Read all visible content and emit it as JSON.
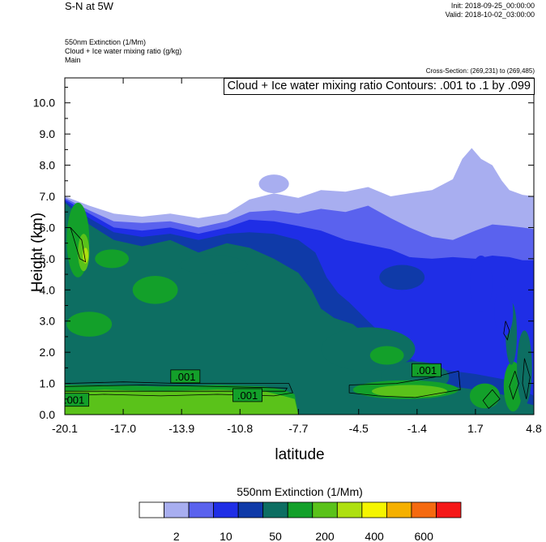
{
  "header": {
    "title": "S-N at 5W",
    "init": "Init: 2018-09-25_00:00:00",
    "valid": "Valid: 2018-10-02_03:00:00",
    "field1": "550nm Extinction   (1/Mm)",
    "field2": "Cloud + Ice water mixing ratio   (g/kg)",
    "field3": "Main",
    "cross_section": "Cross-Section: (269,231) to (269,485)",
    "contour_label": "Cloud + Ice water mixing ratio Contours: .001 to .1 by .099"
  },
  "chart_data": {
    "type": "heatmap",
    "title": "S-N at 5W",
    "xlabel": "latitude",
    "ylabel": "Height (km)",
    "x_ticks": [
      "-20.1",
      "-17.0",
      "-13.9",
      "-10.8",
      "-7.7",
      "-4.5",
      "-1.4",
      "1.7",
      "4.8"
    ],
    "x_tick_values": [
      -20.1,
      -17.0,
      -13.9,
      -10.8,
      -7.7,
      -4.5,
      -1.4,
      1.7,
      4.8
    ],
    "y_ticks": [
      "0.0",
      "1.0",
      "2.0",
      "3.0",
      "4.0",
      "5.0",
      "6.0",
      "7.0",
      "8.0",
      "9.0",
      "10.0"
    ],
    "y_tick_values": [
      0,
      1,
      2,
      3,
      4,
      5,
      6,
      7,
      8,
      9,
      10
    ],
    "xlim": [
      -20.1,
      4.8
    ],
    "ylim": [
      0,
      10.8
    ],
    "contour_labels": [
      {
        "text": ".001",
        "lat": -13.7,
        "height": 1.2
      },
      {
        "text": ".001",
        "lat": -10.4,
        "height": 0.6
      },
      {
        "text": ".001",
        "lat": -19.6,
        "height": 0.45
      },
      {
        "text": ".001",
        "lat": -0.9,
        "height": 1.4
      }
    ],
    "colorbar": {
      "title": "550nm Extinction  (1/Mm)",
      "labels": [
        "2",
        "10",
        "50",
        "200",
        "400",
        "600"
      ],
      "colors": [
        "#ffffff",
        "#a8aef0",
        "#5a62ee",
        "#1f2ee6",
        "#0f3aa8",
        "#0d6e62",
        "#13a02a",
        "#5ac21a",
        "#aee010",
        "#f5f500",
        "#f5b000",
        "#f56a10",
        "#f51818"
      ]
    },
    "bands": [
      {
        "level": 1,
        "color": "#a8aef0",
        "top": [
          [
            -20.1,
            7.0
          ],
          [
            -18.8,
            6.7
          ],
          [
            -17.5,
            6.45
          ],
          [
            -16.0,
            6.35
          ],
          [
            -14.5,
            6.45
          ],
          [
            -13.0,
            6.3
          ],
          [
            -11.5,
            6.45
          ],
          [
            -10.3,
            6.9
          ],
          [
            -9.0,
            7.1
          ],
          [
            -7.7,
            6.95
          ],
          [
            -6.5,
            7.2
          ],
          [
            -5.2,
            7.15
          ],
          [
            -4.0,
            7.3
          ],
          [
            -2.8,
            7.0
          ],
          [
            -1.8,
            7.1
          ],
          [
            -0.6,
            7.2
          ],
          [
            0.5,
            7.55
          ],
          [
            1.0,
            8.2
          ],
          [
            1.5,
            8.55
          ],
          [
            2.0,
            8.2
          ],
          [
            2.6,
            8.0
          ],
          [
            3.1,
            7.5
          ],
          [
            3.5,
            7.2
          ],
          [
            4.2,
            7.05
          ],
          [
            4.8,
            7.0
          ]
        ]
      },
      {
        "level": 2,
        "color": "#5a62ee",
        "top": [
          [
            -20.1,
            6.95
          ],
          [
            -18.8,
            6.55
          ],
          [
            -17.5,
            6.2
          ],
          [
            -16.0,
            6.15
          ],
          [
            -14.5,
            6.2
          ],
          [
            -13.0,
            6.0
          ],
          [
            -11.5,
            6.2
          ],
          [
            -10.3,
            6.5
          ],
          [
            -9.0,
            6.55
          ],
          [
            -7.7,
            6.45
          ],
          [
            -6.5,
            6.6
          ],
          [
            -5.2,
            6.5
          ],
          [
            -4.0,
            6.7
          ],
          [
            -2.8,
            6.3
          ],
          [
            -1.8,
            6.0
          ],
          [
            -0.6,
            5.7
          ],
          [
            0.5,
            5.6
          ],
          [
            1.7,
            5.9
          ],
          [
            2.6,
            6.1
          ],
          [
            3.5,
            6.05
          ],
          [
            4.2,
            6.0
          ],
          [
            4.8,
            5.95
          ]
        ]
      },
      {
        "level": 3,
        "color": "#1f2ee6",
        "top": [
          [
            -20.1,
            6.9
          ],
          [
            -18.8,
            6.45
          ],
          [
            -17.5,
            6.0
          ],
          [
            -16.0,
            5.9
          ],
          [
            -14.5,
            6.0
          ],
          [
            -13.0,
            5.8
          ],
          [
            -11.5,
            6.0
          ],
          [
            -10.3,
            6.25
          ],
          [
            -9.0,
            6.2
          ],
          [
            -7.7,
            6.05
          ],
          [
            -6.5,
            5.9
          ],
          [
            -5.2,
            5.6
          ],
          [
            -4.0,
            5.45
          ],
          [
            -2.8,
            5.3
          ],
          [
            -1.8,
            5.05
          ],
          [
            -0.6,
            5.0
          ],
          [
            0.5,
            5.05
          ],
          [
            1.7,
            5.0
          ],
          [
            2.6,
            5.1
          ],
          [
            3.5,
            5.05
          ],
          [
            4.2,
            4.95
          ],
          [
            4.8,
            4.95
          ]
        ]
      },
      {
        "level": 4,
        "color": "#0f3aa8",
        "top": [
          [
            -20.1,
            6.85
          ],
          [
            -18.8,
            6.3
          ],
          [
            -17.5,
            5.85
          ],
          [
            -16.0,
            5.7
          ],
          [
            -14.5,
            5.8
          ],
          [
            -13.0,
            5.6
          ],
          [
            -11.5,
            5.8
          ],
          [
            -10.3,
            5.85
          ],
          [
            -9.0,
            5.8
          ],
          [
            -7.7,
            5.6
          ],
          [
            -6.8,
            5.2
          ],
          [
            -6.2,
            4.4
          ],
          [
            -5.6,
            3.9
          ],
          [
            -5.0,
            3.6
          ],
          [
            -4.0,
            3.0
          ],
          [
            -2.8,
            2.3
          ],
          [
            -1.8,
            1.8
          ],
          [
            -0.6,
            1.5
          ],
          [
            0.5,
            1.4
          ],
          [
            1.7,
            1.3
          ],
          [
            2.6,
            1.2
          ],
          [
            3.5,
            1.1
          ],
          [
            4.2,
            0.8
          ],
          [
            4.8,
            0.6
          ]
        ]
      },
      {
        "level": 5,
        "color": "#0d6e62",
        "top": [
          [
            -20.1,
            6.8
          ],
          [
            -18.8,
            6.1
          ],
          [
            -17.5,
            5.6
          ],
          [
            -16.0,
            5.4
          ],
          [
            -14.5,
            5.6
          ],
          [
            -13.0,
            5.2
          ],
          [
            -11.5,
            5.5
          ],
          [
            -10.3,
            5.35
          ],
          [
            -9.0,
            5.0
          ],
          [
            -7.7,
            4.55
          ],
          [
            -7.0,
            4.0
          ],
          [
            -6.5,
            3.4
          ],
          [
            -5.8,
            3.1
          ],
          [
            -4.8,
            2.9
          ],
          [
            -4.0,
            2.5
          ],
          [
            -2.8,
            2.0
          ],
          [
            -1.8,
            1.6
          ],
          [
            -0.6,
            1.2
          ],
          [
            0.5,
            0.9
          ],
          [
            1.7,
            0.8
          ],
          [
            2.6,
            0.7
          ],
          [
            3.5,
            0.6
          ],
          [
            4.2,
            0.4
          ],
          [
            4.8,
            0.3
          ]
        ]
      },
      {
        "level": 6,
        "color": "#13a02a",
        "top": [
          [
            -20.1,
            0.95
          ],
          [
            -18.0,
            0.95
          ],
          [
            -15.0,
            0.9
          ],
          [
            -12.0,
            0.95
          ],
          [
            -9.5,
            0.9
          ],
          [
            -8.5,
            0.8
          ],
          [
            -7.9,
            0.65
          ],
          [
            -7.7,
            0.0
          ],
          [
            4.8,
            0.0
          ]
        ]
      },
      {
        "level": 7,
        "color": "#5ac21a",
        "top": [
          [
            -20.1,
            0.75
          ],
          [
            -18.0,
            0.8
          ],
          [
            -15.0,
            0.75
          ],
          [
            -12.0,
            0.8
          ],
          [
            -9.5,
            0.75
          ],
          [
            -8.5,
            0.6
          ],
          [
            -7.9,
            0.5
          ],
          [
            -7.7,
            0.0
          ],
          [
            4.8,
            0.0
          ]
        ]
      }
    ],
    "blobs": [
      {
        "color": "#13a02a",
        "center": [
          -19.4,
          5.6
        ],
        "radii": [
          0.6,
          1.2
        ]
      },
      {
        "color": "#5ac21a",
        "center": [
          -19.1,
          5.2
        ],
        "radii": [
          0.3,
          0.6
        ]
      },
      {
        "color": "#aee010",
        "center": [
          -19.0,
          5.1
        ],
        "radii": [
          0.15,
          0.25
        ]
      },
      {
        "color": "#13a02a",
        "center": [
          -15.3,
          4.0
        ],
        "radii": [
          1.2,
          0.45
        ]
      },
      {
        "color": "#13a02a",
        "center": [
          -18.8,
          2.9
        ],
        "radii": [
          1.2,
          0.4
        ]
      },
      {
        "color": "#13a02a",
        "center": [
          -17.6,
          5.0
        ],
        "radii": [
          0.9,
          0.3
        ]
      },
      {
        "color": "#0d6e62",
        "center": [
          -4.0,
          2.1
        ],
        "radii": [
          2.5,
          0.7
        ]
      },
      {
        "color": "#13a02a",
        "center": [
          -3.0,
          1.9
        ],
        "radii": [
          0.9,
          0.3
        ]
      },
      {
        "color": "#0d6e62",
        "center": [
          -1.5,
          1.2
        ],
        "radii": [
          1.8,
          0.5
        ]
      },
      {
        "color": "#13a02a",
        "center": [
          -2.0,
          0.8
        ],
        "radii": [
          2.8,
          0.3
        ]
      },
      {
        "color": "#5ac21a",
        "center": [
          -1.8,
          0.75
        ],
        "radii": [
          2.0,
          0.2
        ]
      },
      {
        "color": "#13a02a",
        "center": [
          2.2,
          0.6
        ],
        "radii": [
          0.8,
          0.4
        ]
      },
      {
        "color": "#13a02a",
        "center": [
          3.7,
          0.9
        ],
        "radii": [
          0.5,
          0.8
        ]
      },
      {
        "color": "#0d6e62",
        "center": [
          4.3,
          1.5
        ],
        "radii": [
          0.4,
          1.2
        ]
      },
      {
        "color": "#0d6e62",
        "center": [
          3.6,
          2.6
        ],
        "radii": [
          0.3,
          1.0
        ]
      },
      {
        "color": "#1f2ee6",
        "center": [
          2.0,
          4.2
        ],
        "radii": [
          0.6,
          0.9
        ]
      },
      {
        "color": "#1f2ee6",
        "center": [
          3.2,
          3.3
        ],
        "radii": [
          0.5,
          0.8
        ]
      },
      {
        "color": "#a8aef0",
        "center": [
          -9.0,
          7.4
        ],
        "radii": [
          0.8,
          0.3
        ]
      },
      {
        "color": "#0f3aa8",
        "center": [
          -2.2,
          4.4
        ],
        "radii": [
          1.2,
          0.4
        ]
      },
      {
        "color": "#0d6e62",
        "center": [
          -12.2,
          4.8
        ],
        "radii": [
          1.8,
          0.3
        ]
      }
    ]
  }
}
